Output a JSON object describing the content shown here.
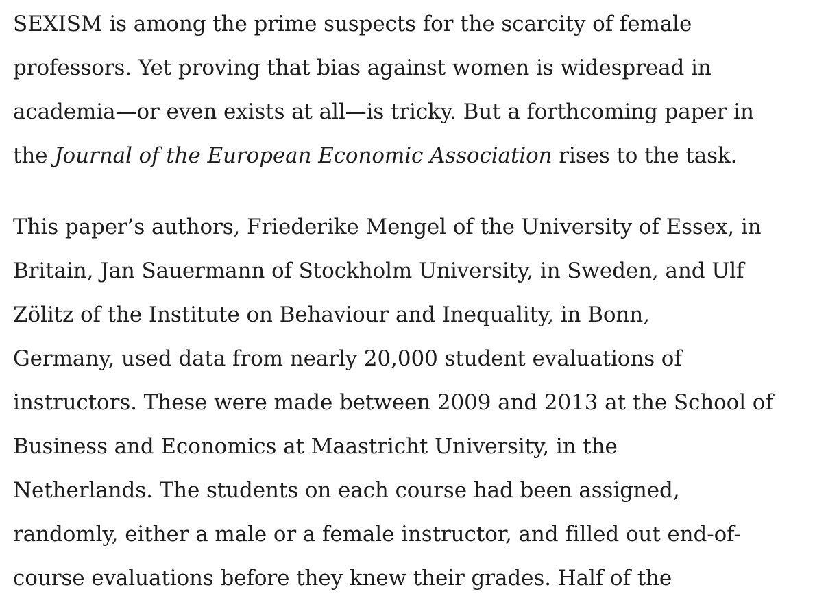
{
  "article": {
    "paragraph_1": {
      "line_1": "SEXISM is among the prime suspects for the scarcity of female",
      "line_2": "professors. Yet proving that bias against women is widespread in",
      "line_3": "academia—or even exists at all—is tricky. But a forthcoming paper in",
      "line_4_pre": "the ",
      "journal_title": "Journal of the European Economic Association",
      "line_4_post": " rises to the task."
    },
    "paragraph_2": {
      "line_1": "This paper’s authors, Friederike Mengel of the University of Essex, in",
      "line_2": "Britain, Jan Sauermann of Stockholm University, in Sweden, and Ulf",
      "line_3": "Zölitz of the Institute on Behaviour and Inequality, in Bonn,",
      "line_4": "Germany, used data from nearly 20,000 student evaluations of",
      "line_5": "instructors. These were made between 2009 and 2013 at the School of",
      "line_6": "Business and Economics at Maastricht University, in the",
      "line_7": "Netherlands. The students on each course had been assigned,",
      "line_8": "randomly, either a male or a female instructor, and filled out end-of-",
      "line_9": "course evaluations before they knew their grades. Half of the"
    }
  }
}
